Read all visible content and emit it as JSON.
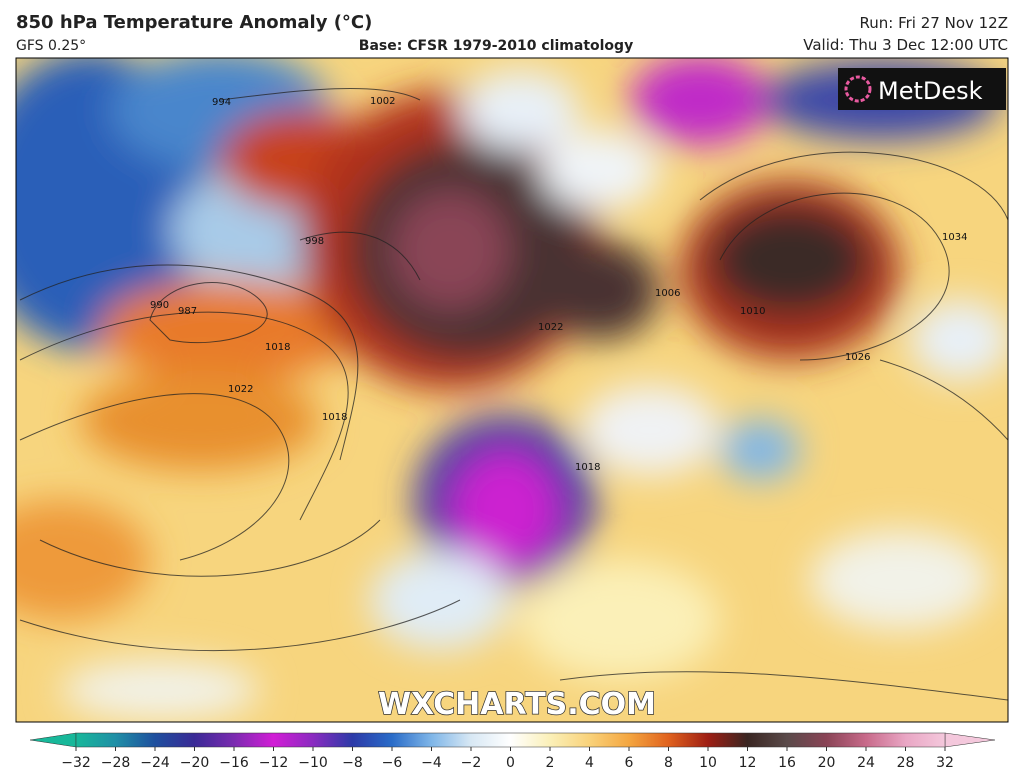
{
  "header": {
    "title": "850 hPa Temperature Anomaly (°C)",
    "model": "GFS 0.25°",
    "base": "Base: CFSR 1979-2010 climatology",
    "run": "Run: Fri 27 Nov 12Z",
    "valid": "Valid: Thu 3 Dec 12:00 UTC"
  },
  "logo": "MetDesk",
  "watermark": "WXCHARTS.COM",
  "isobar_labels": [
    "994",
    "1002",
    "998",
    "987",
    "990",
    "1018",
    "1022",
    "1018",
    "1022",
    "1026",
    "1034",
    "1006",
    "1010",
    "1018"
  ],
  "legend": {
    "ticks": [
      {
        "value": -32,
        "label": "−32"
      },
      {
        "value": -28,
        "label": "−28"
      },
      {
        "value": -24,
        "label": "−24"
      },
      {
        "value": -20,
        "label": "−20"
      },
      {
        "value": -16,
        "label": "−16"
      },
      {
        "value": -12,
        "label": "−12"
      },
      {
        "value": -10,
        "label": "−10"
      },
      {
        "value": -8,
        "label": "−8"
      },
      {
        "value": -6,
        "label": "−6"
      },
      {
        "value": -4,
        "label": "−4"
      },
      {
        "value": -2,
        "label": "−2"
      },
      0,
      2,
      4,
      6,
      8,
      10,
      12,
      16,
      20,
      24,
      28,
      32
    ],
    "colors": [
      "#18b89a",
      "#1f8fa6",
      "#1e4f9e",
      "#3a2a96",
      "#7a2bb0",
      "#d21dd6",
      "#8a2bc0",
      "#2c3aa8",
      "#2a6cc8",
      "#7fb6e8",
      "#d8e8f4",
      "#ffffff",
      "#fbf0b8",
      "#f9d27a",
      "#f4a640",
      "#e0621e",
      "#9e1e14",
      "#3a2622",
      "#5a4a4a",
      "#8a4456",
      "#c86a8a",
      "#e9a6c4",
      "#f4c8dc"
    ]
  }
}
